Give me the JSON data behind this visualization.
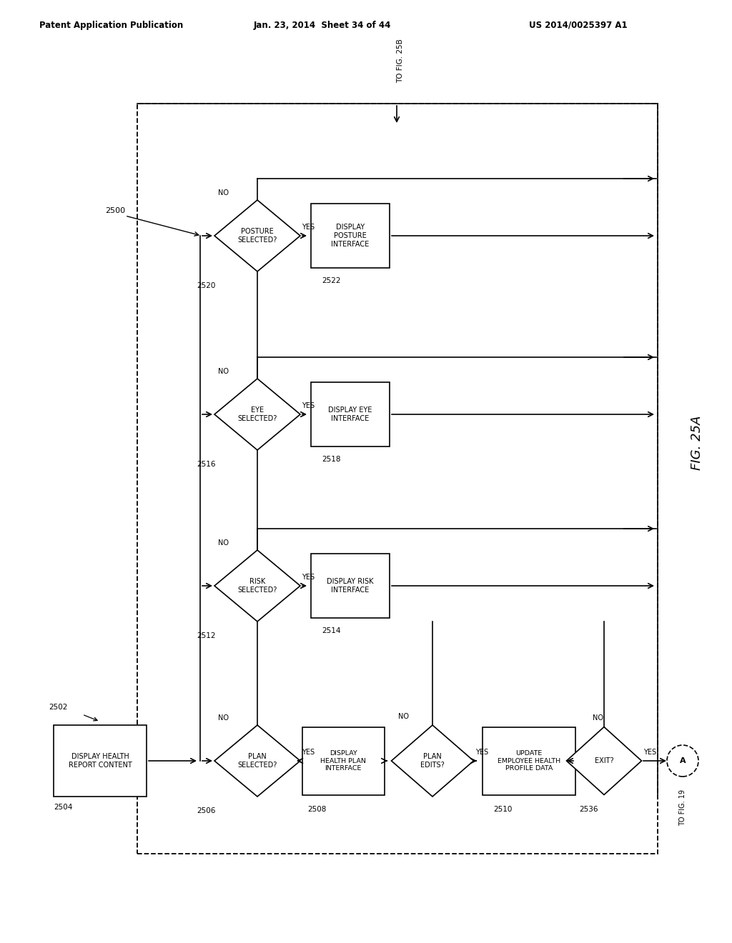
{
  "header_left": "Patent Application Publication",
  "header_mid": "Jan. 23, 2014  Sheet 34 of 44",
  "header_right": "US 2014/0025397 A1",
  "fig_label": "FIG. 25A",
  "to_fig25b": "TO FIG. 25B",
  "to_fig19": "TO FIG. 19",
  "circle_A_label": "A",
  "box_2504_text": "DISPLAY HEALTH\nREPORT CONTENT",
  "diamond_2506_text": "PLAN\nSELECTED?",
  "box_2508_text": "DISPLAY\nHEALTH PLAN\nINTERFACE",
  "diamond_2510_text": "PLAN\nEDITS?",
  "box_update_text": "UPDATE\nEMPLOYEE HEALTH\nPROFILE DATA",
  "diamond_exit_text": "EXIT?",
  "diamond_2512_text": "RISK\nSELECTED?",
  "box_2514_text": "DISPLAY RISK\nINTERFACE",
  "diamond_2516_text": "EYE\nSELECTED?",
  "box_2518_text": "DISPLAY EYE\nINTERFACE",
  "diamond_2520_text": "POSTURE\nSELECTED?",
  "box_2522_text": "DISPLAY\nPOSTURE\nINTERFACE"
}
